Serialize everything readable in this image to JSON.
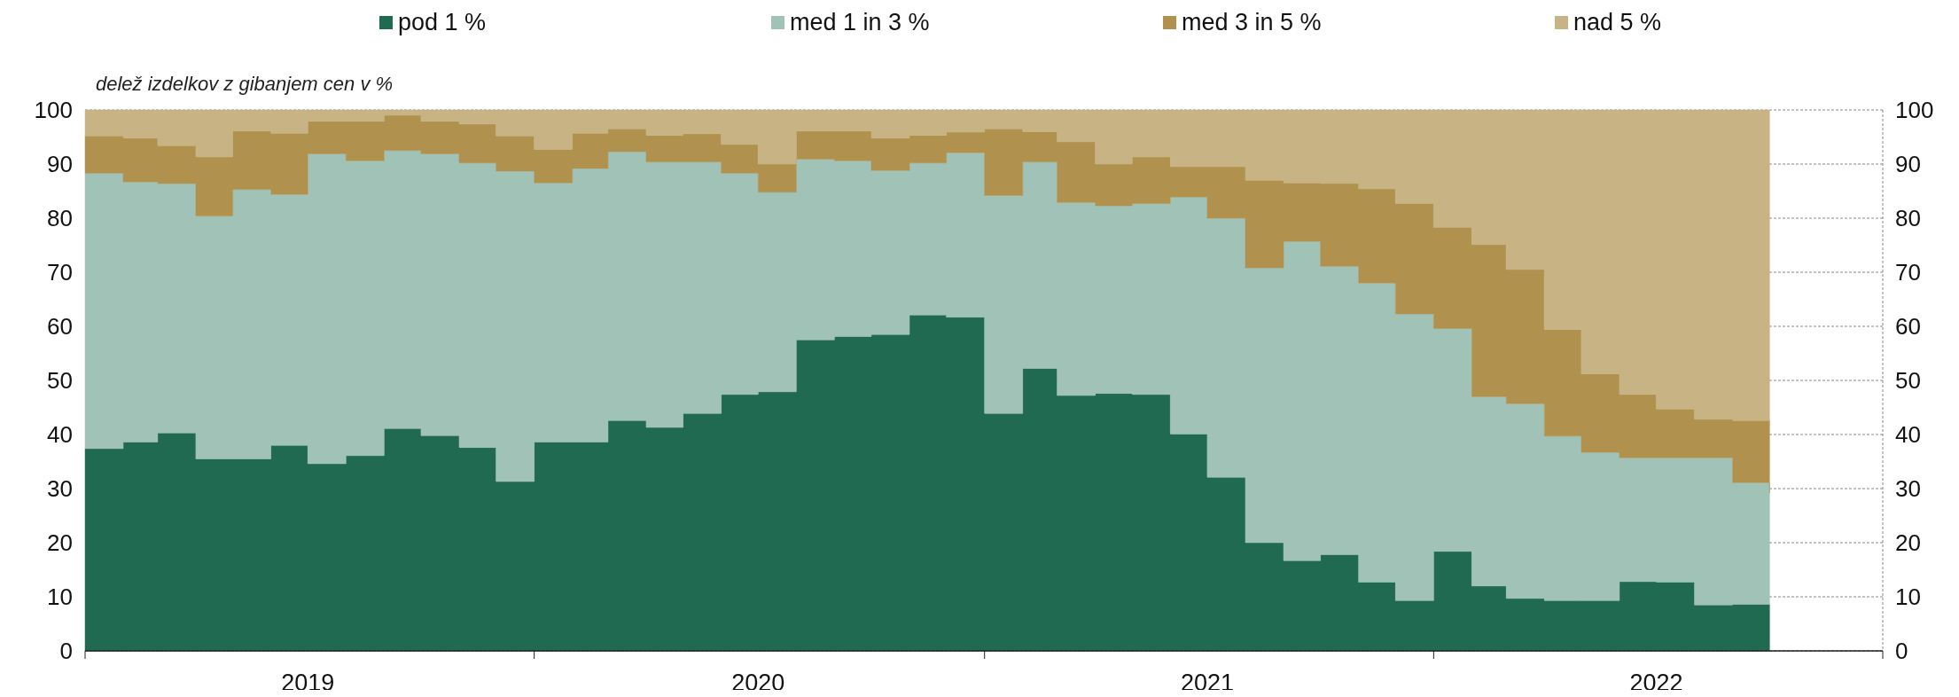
{
  "chart_data": {
    "type": "area",
    "stacked": true,
    "ylabel": "delež izdelkov z gibanjem cen v %",
    "x": [
      "2019-01",
      "2019-02",
      "2019-03",
      "2019-04",
      "2019-05",
      "2019-06",
      "2019-07",
      "2019-08",
      "2019-09",
      "2019-10",
      "2019-11",
      "2019-12",
      "2020-01",
      "2020-02",
      "2020-03",
      "2020-04",
      "2020-05",
      "2020-06",
      "2020-07",
      "2020-08",
      "2020-09",
      "2020-10",
      "2020-11",
      "2020-12",
      "2021-01",
      "2021-02",
      "2021-03",
      "2021-04",
      "2021-05",
      "2021-06",
      "2021-07",
      "2021-08",
      "2021-09",
      "2021-10",
      "2021-11",
      "2021-12",
      "2022-01",
      "2022-02",
      "2022-03",
      "2022-04",
      "2022-05",
      "2022-06",
      "2022-07",
      "2022-08",
      "2022-09",
      "2022-10"
    ],
    "series": [
      {
        "name": "pod 1 %",
        "color": "#1f6a50",
        "values": [
          37.4,
          38.6,
          40.3,
          35.5,
          35.5,
          38.0,
          34.6,
          36.1,
          41.1,
          39.8,
          37.6,
          31.3,
          38.6,
          38.6,
          42.6,
          41.3,
          43.9,
          47.4,
          47.9,
          57.5,
          58.1,
          58.5,
          62.1,
          61.7,
          43.9,
          52.2,
          47.2,
          47.6,
          47.4,
          40.1,
          32.1,
          20.0,
          16.7,
          17.8,
          12.7,
          9.3,
          18.4,
          12.0,
          9.7,
          9.3,
          9.3,
          12.8,
          12.7,
          8.5,
          8.6,
          8.5
        ]
      },
      {
        "name": "med 1 in 3 %",
        "color": "#a1c2b6",
        "values": [
          50.9,
          48.1,
          46.1,
          44.9,
          49.8,
          46.4,
          57.3,
          54.5,
          51.4,
          52.1,
          52.6,
          57.4,
          47.9,
          50.6,
          49.7,
          49.1,
          46.5,
          40.9,
          36.9,
          33.4,
          32.5,
          30.3,
          28.1,
          30.4,
          40.3,
          38.2,
          35.7,
          34.7,
          35.3,
          43.8,
          47.9,
          50.8,
          59.0,
          53.3,
          55.3,
          53.0,
          41.2,
          35.0,
          36.0,
          30.4,
          27.4,
          22.9,
          23.0,
          27.2,
          22.5,
          20.7
        ]
      },
      {
        "name": "med 3 in 5 %",
        "color": "#b0924e",
        "values": [
          6.9,
          8.1,
          7.0,
          10.9,
          10.8,
          11.3,
          6.0,
          7.3,
          6.5,
          6.0,
          7.2,
          6.5,
          6.2,
          6.5,
          4.2,
          4.9,
          5.2,
          5.3,
          5.2,
          5.2,
          5.5,
          6.0,
          5.1,
          3.8,
          12.3,
          5.6,
          11.2,
          7.7,
          8.6,
          5.6,
          9.5,
          16.2,
          10.8,
          15.3,
          17.4,
          20.4,
          18.7,
          28.1,
          24.8,
          19.7,
          14.5,
          11.7,
          9.0,
          7.1,
          11.5,
          12.5
        ]
      },
      {
        "name": "nad 5 %",
        "color": "#c7b383",
        "values": [
          4.8,
          5.2,
          6.6,
          8.7,
          3.9,
          4.3,
          2.1,
          2.1,
          1.0,
          2.1,
          2.6,
          4.8,
          7.3,
          4.3,
          3.5,
          4.7,
          4.4,
          6.4,
          10.0,
          3.9,
          3.9,
          5.2,
          4.7,
          4.1,
          3.5,
          4.0,
          5.9,
          10.0,
          8.7,
          10.5,
          10.5,
          13.0,
          13.5,
          13.6,
          14.6,
          17.3,
          21.7,
          24.9,
          29.5,
          40.6,
          48.8,
          52.6,
          55.3,
          57.2,
          57.4,
          58.3
        ]
      }
    ],
    "xlim": [
      "2019-01",
      "2023-01"
    ],
    "xticks": [
      {
        "value": "2019-01",
        "label": null
      },
      {
        "value": "2019-07",
        "label": "2019"
      },
      {
        "value": "2020-01",
        "label": null
      },
      {
        "value": "2020-07",
        "label": "2020"
      },
      {
        "value": "2021-01",
        "label": null
      },
      {
        "value": "2021-07",
        "label": "2021"
      },
      {
        "value": "2022-01",
        "label": null
      },
      {
        "value": "2022-07",
        "label": "2022"
      },
      {
        "value": "2023-01",
        "label": null
      }
    ],
    "ylim": [
      0,
      100
    ],
    "yticks": [
      0,
      10,
      20,
      30,
      40,
      50,
      60,
      70,
      80,
      90,
      100
    ],
    "y2lim": [
      0,
      100
    ],
    "y2ticks": [
      0,
      10,
      20,
      30,
      40,
      50,
      60,
      70,
      80,
      90,
      100
    ],
    "grid": "y",
    "legend": "top"
  }
}
